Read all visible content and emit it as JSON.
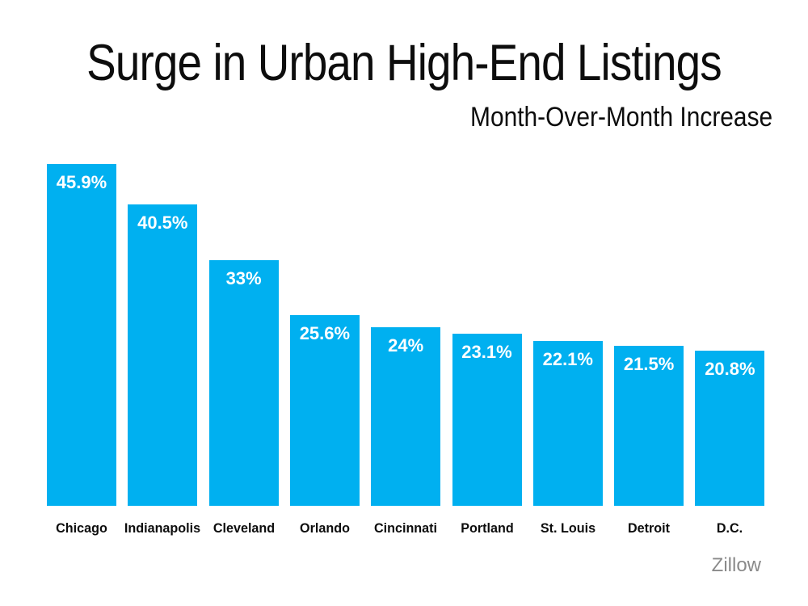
{
  "chart_data": {
    "type": "bar",
    "title": "Surge in Urban High-End Listings",
    "subtitle": "Month-Over-Month Increase",
    "categories": [
      "Chicago",
      "Indianapolis",
      "Cleveland",
      "Orlando",
      "Cincinnati",
      "Portland",
      "St. Louis",
      "Detroit",
      "D.C."
    ],
    "values": [
      45.9,
      40.5,
      33,
      25.6,
      24,
      23.1,
      22.1,
      21.5,
      20.8
    ],
    "value_labels": [
      "45.9%",
      "40.5%",
      "33%",
      "25.6%",
      "24%",
      "23.1%",
      "22.1%",
      "21.5%",
      "20.8%"
    ],
    "xlabel": "",
    "ylabel": "",
    "ylim": [
      0,
      46
    ],
    "grid": false,
    "legend": false,
    "orientation": "vertical",
    "sort_order": "descending",
    "bar_color": "#00B0F0",
    "value_label_color": "#FFFFFF",
    "axis_label_color": "#0D0D0D",
    "title_color": "#0D0D0D",
    "source": "Zillow",
    "source_color": "#8A8A8A",
    "background_color": "#FFFFFF"
  }
}
